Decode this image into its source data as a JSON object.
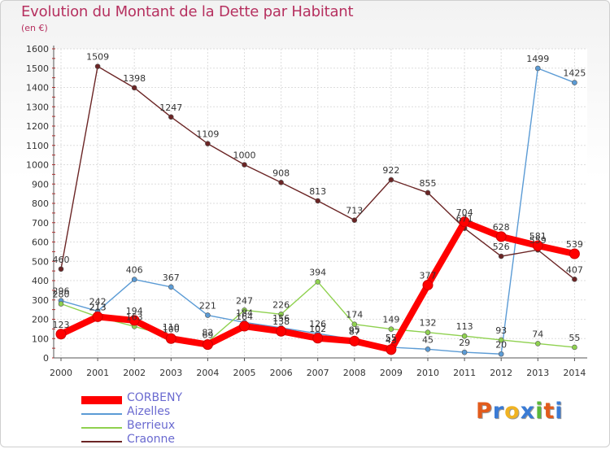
{
  "chart_data": {
    "type": "line",
    "title": "Evolution du Montant de la Dette par Habitant",
    "subtitle": "(en €)",
    "ylim": [
      0,
      1600
    ],
    "y_ticks": [
      0,
      100,
      200,
      300,
      400,
      500,
      600,
      700,
      800,
      900,
      1000,
      1100,
      1200,
      1300,
      1400,
      1500,
      1600
    ],
    "categories": [
      "2000",
      "2001",
      "2002",
      "2003",
      "2004",
      "2005",
      "2006",
      "2007",
      "2008",
      "2009",
      "2010",
      "2011",
      "2012",
      "2013",
      "2014"
    ],
    "grid": true,
    "legend_position": "bottom-left",
    "series": [
      {
        "name": "Aizelles",
        "color": "#5b9bd5",
        "values": [
          296,
          242,
          406,
          367,
          221,
          184,
          156,
          126,
          95,
          55,
          45,
          29,
          20,
          1499,
          1425
        ],
        "labels": [
          "296",
          "242",
          "406",
          "367",
          "221",
          "184",
          "156",
          "126",
          "95",
          "55",
          "45",
          "29",
          "20",
          "1499",
          "1425"
        ]
      },
      {
        "name": "Berrieux",
        "color": "#8fd14f",
        "values": [
          280,
          213,
          163,
          110,
          82,
          247,
          226,
          394,
          174,
          149,
          132,
          113,
          93,
          74,
          55
        ],
        "labels": [
          "280",
          "213",
          "163",
          "110",
          "82",
          "247",
          "226",
          "394",
          "174",
          "149",
          "132",
          "113",
          "93",
          "74",
          "55"
        ]
      },
      {
        "name": "Craonne",
        "color": "#6b2525",
        "values": [
          460,
          1509,
          1398,
          1247,
          1109,
          1000,
          908,
          813,
          713,
          922,
          855,
          671,
          526,
          559,
          407
        ],
        "labels": [
          "460",
          "1509",
          "1398",
          "1247",
          "1109",
          "1000",
          "908",
          "813",
          "713",
          "922",
          "855",
          "671",
          "526",
          "559",
          "407"
        ]
      },
      {
        "name": "CORBENY",
        "color": "#ff0000",
        "values": [
          123,
          213,
          194,
          100,
          69,
          164,
          138,
          102,
          87,
          43,
          377,
          704,
          628,
          581,
          539
        ],
        "labels": [
          "123",
          "213",
          "194",
          "100",
          "69",
          "164",
          "138",
          "102",
          "87",
          "43",
          "377",
          "704",
          "628",
          "581",
          "539"
        ]
      }
    ]
  },
  "legend": [
    {
      "label": "CORBENY",
      "color": "#ff0000",
      "kind": "thick"
    },
    {
      "label": "Aizelles",
      "color": "#5b9bd5",
      "kind": "thin"
    },
    {
      "label": "Berrieux",
      "color": "#8fd14f",
      "kind": "thin"
    },
    {
      "label": "Craonne",
      "color": "#6b2525",
      "kind": "thin"
    }
  ],
  "logo": {
    "letters": [
      "P",
      "r",
      "o",
      "x",
      "i",
      "t",
      "i"
    ],
    "colors": [
      "#e25b1c",
      "#3a7bd5",
      "#f0b323",
      "#3a7bd5",
      "#5bb83a",
      "#e25b1c",
      "#3a7bd5"
    ]
  }
}
